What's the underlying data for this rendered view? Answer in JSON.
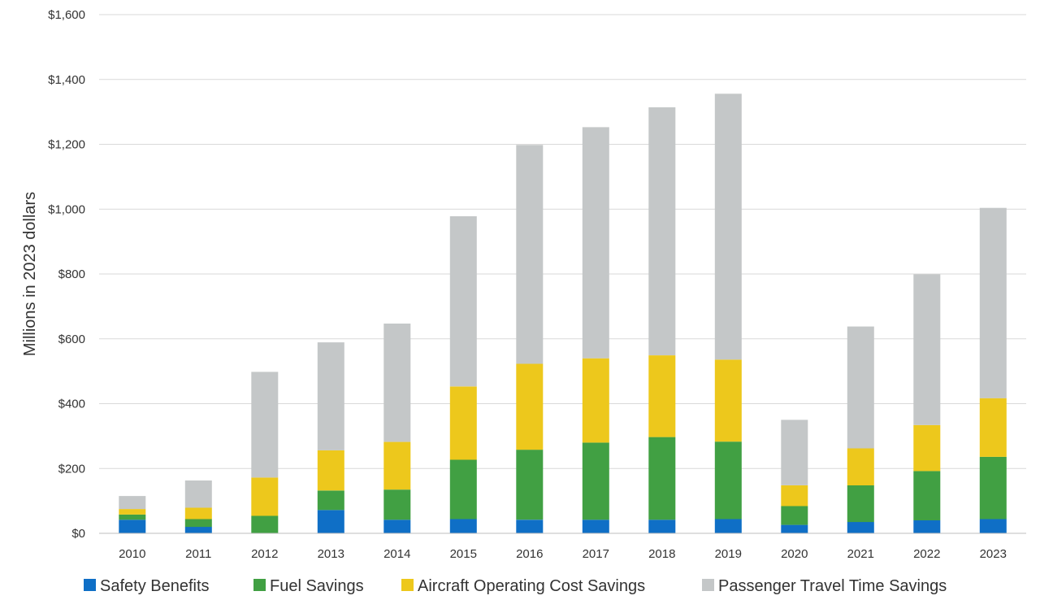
{
  "chart_data": {
    "type": "bar",
    "stacked": true,
    "title": "",
    "xlabel": "",
    "ylabel": "Millions in 2023 dollars",
    "ylim": [
      0,
      1600
    ],
    "yticks": [
      0,
      200,
      400,
      600,
      800,
      1000,
      1200,
      1400,
      1600
    ],
    "ytick_labels": [
      "$0",
      "$200",
      "$400",
      "$600",
      "$800",
      "$1,000",
      "$1,200",
      "$1,400",
      "$1,600"
    ],
    "grid": true,
    "legend_position": "bottom",
    "categories": [
      "2010",
      "2011",
      "2012",
      "2013",
      "2014",
      "2015",
      "2016",
      "2017",
      "2018",
      "2019",
      "2020",
      "2021",
      "2022",
      "2023"
    ],
    "series": [
      {
        "name": "Safety Benefits",
        "color": "#0f6fc6",
        "values": [
          42,
          20,
          0,
          72,
          42,
          44,
          42,
          42,
          42,
          44,
          26,
          35,
          40,
          44
        ]
      },
      {
        "name": "Fuel Savings",
        "color": "#41a043",
        "values": [
          16,
          24,
          54,
          60,
          93,
          183,
          216,
          238,
          255,
          239,
          58,
          113,
          152,
          192
        ]
      },
      {
        "name": "Aircraft Operating Cost Savings",
        "color": "#edc81c",
        "values": [
          17,
          35,
          118,
          124,
          147,
          226,
          265,
          260,
          252,
          253,
          64,
          114,
          142,
          181
        ]
      },
      {
        "name": "Passenger Travel Time Savings",
        "color": "#c4c7c8",
        "values": [
          40,
          84,
          326,
          333,
          365,
          525,
          675,
          713,
          765,
          820,
          202,
          376,
          465,
          587
        ]
      }
    ]
  }
}
